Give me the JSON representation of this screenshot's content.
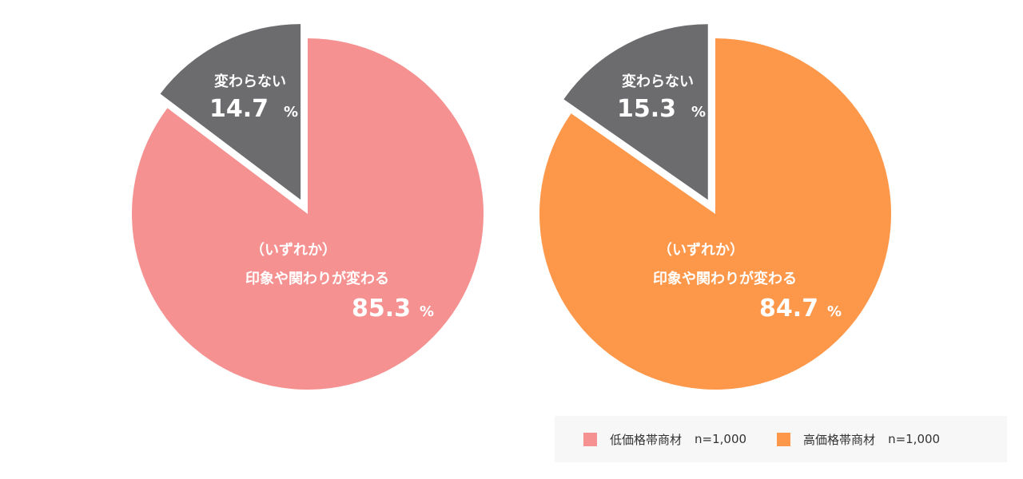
{
  "chart_data": [
    {
      "type": "pie",
      "series_name": "低価格帯商材",
      "n_label": "n=1,000",
      "color": "#f59190",
      "slices": [
        {
          "label": "変わらない",
          "value": 14.7,
          "value_text": "14.7",
          "unit": "%",
          "color": "#6c6b6e",
          "exploded": true
        },
        {
          "label_line1": "（いずれか）",
          "label_line2": "印象や関わりが変わる",
          "value": 85.3,
          "value_text": "85.3",
          "unit": "%",
          "color": "#f59190",
          "exploded": false
        }
      ]
    },
    {
      "type": "pie",
      "series_name": "高価格帯商材",
      "n_label": "n=1,000",
      "color": "#fd974a",
      "slices": [
        {
          "label": "変わらない",
          "value": 15.3,
          "value_text": "15.3",
          "unit": "%",
          "color": "#6c6b6e",
          "exploded": true
        },
        {
          "label_line1": "（いずれか）",
          "label_line2": "印象や関わりが変わる",
          "value": 84.7,
          "value_text": "84.7",
          "unit": "%",
          "color": "#fd974a",
          "exploded": false
        }
      ]
    }
  ],
  "legend": {
    "items": [
      {
        "name": "低価格帯商材",
        "n": "n=1,000",
        "color": "#f59190"
      },
      {
        "name": "高価格帯商材",
        "n": "n=1,000",
        "color": "#fd974a"
      }
    ]
  }
}
